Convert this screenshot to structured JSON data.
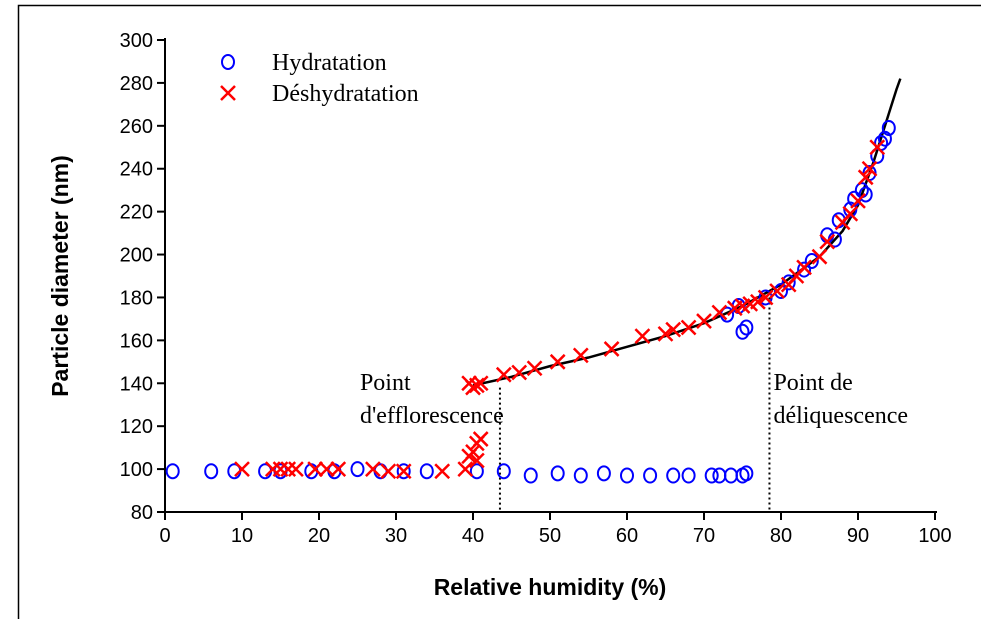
{
  "chart_data": {
    "type": "scatter",
    "xlabel": "Relative humidity (%)",
    "ylabel": "Particle diameter (nm)",
    "xlim": [
      0,
      100
    ],
    "ylim": [
      80,
      300
    ],
    "xticks": [
      0,
      10,
      20,
      30,
      40,
      50,
      60,
      70,
      80,
      90,
      100
    ],
    "yticks": [
      80,
      100,
      120,
      140,
      160,
      180,
      200,
      220,
      240,
      260,
      280,
      300
    ],
    "legend": "upper left",
    "series": [
      {
        "name": "Hydratation",
        "color": "#0000ff",
        "marker": "circle",
        "x": [
          1,
          6,
          9,
          13,
          15,
          19,
          22,
          25,
          28,
          31,
          34,
          40.5,
          44,
          47.5,
          51,
          54,
          57,
          60,
          63,
          66,
          68,
          71,
          72,
          73.5,
          75,
          75.5,
          73,
          75,
          75.5,
          74.5,
          78,
          80,
          81,
          83,
          84,
          86,
          87,
          87.5,
          89,
          89.5,
          90.5,
          91,
          91.5,
          92.5,
          93,
          93.5,
          94
        ],
        "values": [
          99,
          99,
          99,
          99,
          99,
          99,
          99,
          100,
          99,
          99,
          99,
          99,
          99,
          97,
          98,
          97,
          98,
          97,
          97,
          97,
          97,
          97,
          97,
          97,
          97,
          98,
          172,
          164,
          166,
          176,
          180,
          183,
          187,
          193,
          197,
          209,
          207,
          216,
          221,
          226,
          230,
          228,
          238,
          246,
          252,
          254,
          259
        ]
      },
      {
        "name": "Déshydratation",
        "color": "#ff0000",
        "marker": "x",
        "x": [
          10,
          14,
          15,
          16,
          17,
          19.5,
          21,
          22.5,
          27,
          29,
          31,
          36,
          39,
          39.5,
          40,
          40.5,
          40.5,
          41,
          39.5,
          40,
          40.5,
          41,
          44,
          46,
          48,
          51,
          54,
          58,
          62,
          65,
          66,
          68,
          70,
          72,
          74,
          75,
          76,
          77,
          78,
          79.5,
          81,
          82,
          83,
          85,
          86,
          88,
          89,
          90,
          91,
          91.5,
          92.5
        ],
        "values": [
          100,
          100,
          100,
          100,
          100,
          100,
          100,
          100,
          100,
          99,
          99,
          99,
          100,
          106,
          108,
          104,
          112,
          114,
          140,
          138,
          139,
          140,
          144,
          145,
          147,
          150,
          153,
          156,
          162,
          163,
          165,
          166,
          169,
          173,
          175,
          176,
          177,
          178,
          180,
          183,
          186,
          190,
          194,
          199,
          206,
          215,
          219,
          225,
          236,
          240,
          250
        ]
      }
    ],
    "fit": {
      "color": "#000000",
      "x": [
        40,
        45,
        50,
        55,
        60,
        65,
        70,
        75,
        80,
        85,
        88,
        90,
        92,
        93.5,
        95,
        95.5
      ],
      "values": [
        139,
        143,
        148,
        152,
        157,
        162,
        168,
        176,
        186,
        199,
        211,
        223,
        243,
        260,
        277,
        282
      ]
    },
    "annotations": [
      {
        "lines": [
          "Point",
          "d'efflorescence"
        ],
        "x": 43.5,
        "y": 138
      },
      {
        "lines": [
          "Point de",
          "déliquescence"
        ],
        "x": 78.5,
        "y": 180
      }
    ]
  }
}
